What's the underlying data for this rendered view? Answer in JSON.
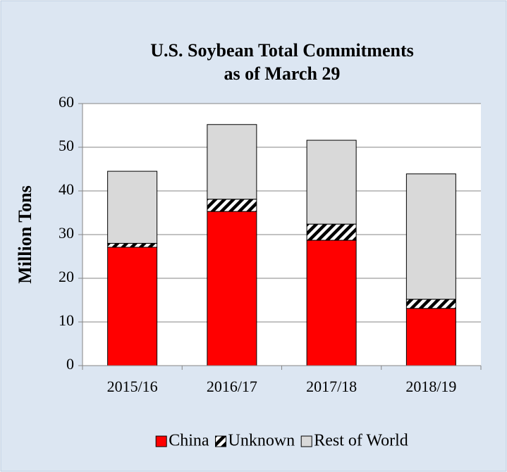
{
  "chart_data": {
    "type": "stacked-bar",
    "title": [
      "U.S. Soybean Total Commitments",
      "as of March 29"
    ],
    "y_label": "Million Tons",
    "categories": [
      "2015/16",
      "2016/17",
      "2017/18",
      "2018/19"
    ],
    "series": [
      {
        "name": "China",
        "color": "#ff0000",
        "values": [
          27.1,
          35.3,
          28.7,
          13.1
        ]
      },
      {
        "name": "Unknown",
        "color": "#000000",
        "pattern": "hatch",
        "values": [
          0.9,
          2.8,
          3.7,
          2.1
        ]
      },
      {
        "name": "Rest of World",
        "color": "#d9d9d9",
        "values": [
          16.5,
          17.1,
          19.2,
          28.7
        ]
      }
    ],
    "ylim": [
      0,
      60
    ],
    "yticks": [
      0,
      10,
      20,
      30,
      40,
      50,
      60
    ],
    "grid": true,
    "legend": "bottom"
  }
}
